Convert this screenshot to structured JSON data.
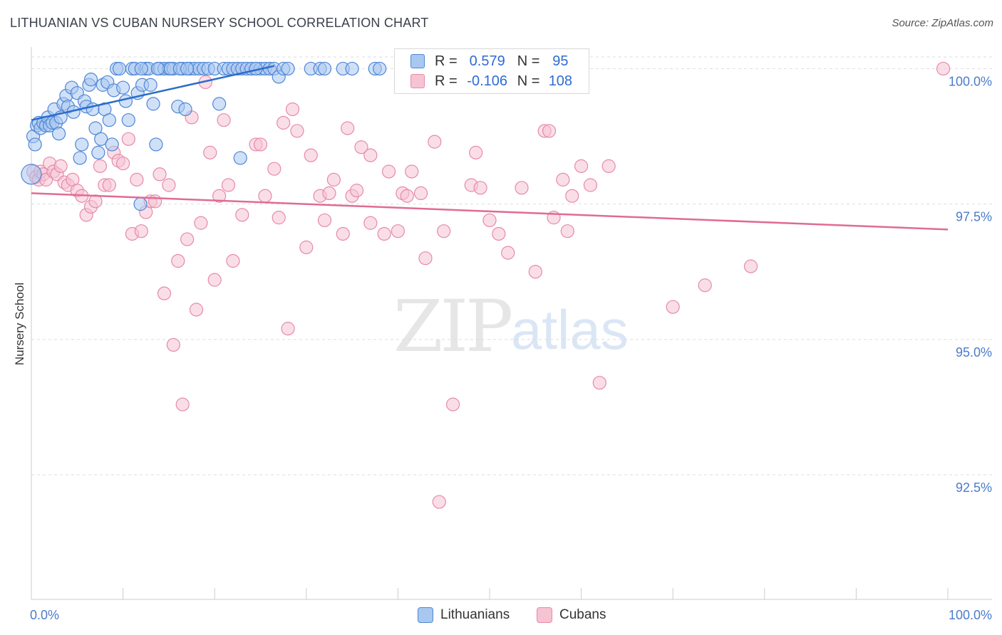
{
  "title": "LITHUANIAN VS CUBAN NURSERY SCHOOL CORRELATION CHART",
  "source": "Source: ZipAtlas.com",
  "watermark": {
    "zip": "ZIP",
    "atlas": "atlas"
  },
  "legend": {
    "r_label": "R =",
    "n_label": "N =",
    "lithuanians": {
      "r": "0.579",
      "n": "95"
    },
    "cubans": {
      "r": "-0.106",
      "n": "108"
    }
  },
  "colors": {
    "blue_fill": "#a9c8f0",
    "blue_stroke": "#4f86d6",
    "blue_line": "#2a6dcc",
    "pink_fill": "#f6c3d3",
    "pink_stroke": "#e68aa8",
    "pink_line": "#e06b95",
    "tick_text": "#4a7cc9"
  },
  "chart_data": {
    "type": "scatter",
    "title": "LITHUANIAN VS CUBAN NURSERY SCHOOL CORRELATION CHART",
    "xlabel": "",
    "ylabel": "Nursery School",
    "xlim": [
      0,
      100
    ],
    "ylim": [
      90.2,
      100.4
    ],
    "x_tick_labels": [
      "0.0%",
      "100.0%"
    ],
    "y_ticks": [
      92.5,
      95.0,
      97.5,
      100.0
    ],
    "y_tick_labels": [
      "92.5%",
      "95.0%",
      "97.5%",
      "100.0%"
    ],
    "legend_entries": [
      "Lithuanians",
      "Cubans"
    ],
    "series": [
      {
        "name": "Lithuanians",
        "trend": {
          "x": [
            0,
            26.5
          ],
          "y": [
            99.05,
            100.05
          ]
        },
        "points": [
          [
            0.2,
            98.75
          ],
          [
            0.4,
            98.6
          ],
          [
            0.6,
            98.95
          ],
          [
            0.8,
            99.0
          ],
          [
            1.0,
            98.9
          ],
          [
            1.3,
            99.0
          ],
          [
            1.6,
            98.95
          ],
          [
            1.8,
            99.1
          ],
          [
            2.0,
            98.95
          ],
          [
            2.3,
            99.0
          ],
          [
            2.5,
            99.25
          ],
          [
            2.7,
            99.0
          ],
          [
            3.0,
            98.8
          ],
          [
            3.2,
            99.1
          ],
          [
            3.5,
            99.35
          ],
          [
            3.8,
            99.5
          ],
          [
            4.0,
            99.3
          ],
          [
            4.4,
            99.65
          ],
          [
            4.6,
            99.2
          ],
          [
            5.0,
            99.55
          ],
          [
            5.3,
            98.35
          ],
          [
            5.5,
            98.6
          ],
          [
            5.8,
            99.4
          ],
          [
            6.0,
            99.3
          ],
          [
            6.3,
            99.7
          ],
          [
            6.5,
            99.8
          ],
          [
            6.7,
            99.25
          ],
          [
            7.0,
            98.9
          ],
          [
            7.3,
            98.45
          ],
          [
            7.6,
            98.7
          ],
          [
            7.8,
            99.7
          ],
          [
            8.0,
            99.25
          ],
          [
            8.3,
            99.75
          ],
          [
            8.5,
            99.05
          ],
          [
            8.8,
            98.6
          ],
          [
            9.0,
            99.6
          ],
          [
            9.3,
            100.0
          ],
          [
            9.6,
            100.0
          ],
          [
            10.0,
            99.65
          ],
          [
            10.3,
            99.4
          ],
          [
            10.6,
            99.05
          ],
          [
            11.0,
            100.0
          ],
          [
            11.3,
            100.0
          ],
          [
            11.6,
            99.55
          ],
          [
            11.9,
            97.5
          ],
          [
            12.1,
            99.7
          ],
          [
            12.5,
            100.0
          ],
          [
            12.8,
            100.0
          ],
          [
            13.0,
            99.7
          ],
          [
            13.3,
            99.35
          ],
          [
            13.6,
            98.6
          ],
          [
            14.0,
            100.0
          ],
          [
            14.5,
            100.0
          ],
          [
            15.0,
            100.0
          ],
          [
            15.5,
            100.0
          ],
          [
            16.0,
            99.3
          ],
          [
            16.5,
            100.0
          ],
          [
            16.8,
            99.25
          ],
          [
            17.3,
            100.0
          ],
          [
            17.8,
            100.0
          ],
          [
            18.3,
            100.0
          ],
          [
            18.8,
            100.0
          ],
          [
            19.3,
            100.0
          ],
          [
            20.0,
            100.0
          ],
          [
            20.5,
            99.35
          ],
          [
            21.0,
            100.0
          ],
          [
            21.5,
            100.0
          ],
          [
            22.0,
            100.0
          ],
          [
            22.5,
            100.0
          ],
          [
            23.0,
            100.0
          ],
          [
            23.5,
            100.0
          ],
          [
            24.0,
            100.0
          ],
          [
            24.5,
            100.0
          ],
          [
            25.0,
            100.0
          ],
          [
            25.5,
            100.0
          ],
          [
            26.0,
            100.0
          ],
          [
            26.5,
            100.0
          ],
          [
            27.0,
            99.85
          ],
          [
            27.5,
            100.0
          ],
          [
            28.0,
            100.0
          ],
          [
            30.5,
            100.0
          ],
          [
            31.5,
            100.0
          ],
          [
            32.0,
            100.0
          ],
          [
            34.0,
            100.0
          ],
          [
            35.0,
            100.0
          ],
          [
            37.5,
            100.0
          ],
          [
            38.0,
            100.0
          ],
          [
            22.8,
            98.35
          ],
          [
            24.5,
            100.0
          ],
          [
            12.0,
            100.0
          ],
          [
            13.8,
            100.0
          ],
          [
            15.2,
            100.0
          ],
          [
            16.2,
            100.0
          ],
          [
            17.0,
            100.0
          ],
          [
            0.0,
            98.05
          ]
        ]
      },
      {
        "name": "Cubans",
        "trend": {
          "x": [
            0,
            100
          ],
          "y": [
            97.7,
            97.03
          ]
        },
        "points": [
          [
            0.2,
            98.1
          ],
          [
            0.5,
            98.0
          ],
          [
            0.8,
            97.95
          ],
          [
            1.0,
            98.1
          ],
          [
            1.3,
            98.05
          ],
          [
            1.6,
            97.95
          ],
          [
            2.0,
            98.25
          ],
          [
            2.4,
            98.1
          ],
          [
            2.8,
            98.05
          ],
          [
            3.2,
            98.2
          ],
          [
            3.6,
            97.9
          ],
          [
            4.0,
            97.85
          ],
          [
            4.5,
            97.95
          ],
          [
            5.0,
            97.75
          ],
          [
            5.5,
            97.65
          ],
          [
            6.0,
            97.3
          ],
          [
            6.5,
            97.45
          ],
          [
            7.0,
            97.55
          ],
          [
            7.5,
            98.2
          ],
          [
            8.0,
            97.85
          ],
          [
            8.5,
            97.85
          ],
          [
            9.0,
            98.45
          ],
          [
            9.5,
            98.3
          ],
          [
            10.0,
            98.25
          ],
          [
            10.6,
            98.7
          ],
          [
            11.0,
            96.95
          ],
          [
            11.5,
            97.95
          ],
          [
            12.0,
            97.0
          ],
          [
            12.5,
            97.35
          ],
          [
            13.0,
            97.55
          ],
          [
            13.5,
            97.55
          ],
          [
            14.0,
            98.05
          ],
          [
            14.5,
            95.85
          ],
          [
            15.0,
            97.85
          ],
          [
            15.5,
            94.9
          ],
          [
            16.0,
            96.45
          ],
          [
            16.5,
            93.8
          ],
          [
            17.0,
            96.85
          ],
          [
            17.5,
            99.1
          ],
          [
            18.0,
            95.55
          ],
          [
            18.5,
            97.15
          ],
          [
            19.0,
            99.75
          ],
          [
            19.5,
            98.45
          ],
          [
            20.0,
            96.1
          ],
          [
            20.5,
            97.65
          ],
          [
            21.0,
            99.05
          ],
          [
            21.5,
            97.85
          ],
          [
            22.0,
            96.45
          ],
          [
            22.5,
            100.0
          ],
          [
            23.0,
            97.3
          ],
          [
            24.0,
            100.0
          ],
          [
            24.5,
            98.6
          ],
          [
            25.0,
            98.6
          ],
          [
            25.5,
            97.65
          ],
          [
            26.0,
            100.0
          ],
          [
            26.5,
            98.15
          ],
          [
            27.0,
            97.25
          ],
          [
            27.5,
            99.0
          ],
          [
            28.0,
            95.2
          ],
          [
            28.5,
            99.25
          ],
          [
            29.0,
            98.85
          ],
          [
            30.0,
            96.7
          ],
          [
            30.5,
            98.4
          ],
          [
            31.5,
            97.65
          ],
          [
            32.0,
            97.2
          ],
          [
            32.5,
            97.7
          ],
          [
            33.0,
            97.95
          ],
          [
            34.0,
            96.95
          ],
          [
            34.5,
            98.9
          ],
          [
            35.0,
            97.65
          ],
          [
            35.5,
            97.75
          ],
          [
            36.0,
            98.55
          ],
          [
            37.0,
            98.4
          ],
          [
            38.5,
            96.95
          ],
          [
            39.0,
            98.1
          ],
          [
            40.0,
            97.0
          ],
          [
            40.5,
            97.7
          ],
          [
            41.0,
            97.65
          ],
          [
            41.5,
            98.1
          ],
          [
            42.5,
            97.7
          ],
          [
            43.0,
            96.5
          ],
          [
            44.0,
            98.65
          ],
          [
            45.0,
            97.0
          ],
          [
            46.0,
            93.8
          ],
          [
            48.0,
            97.85
          ],
          [
            48.5,
            98.45
          ],
          [
            49.0,
            97.8
          ],
          [
            50.0,
            97.2
          ],
          [
            51.0,
            96.95
          ],
          [
            52.0,
            96.6
          ],
          [
            53.5,
            97.8
          ],
          [
            55.0,
            96.25
          ],
          [
            56.0,
            98.85
          ],
          [
            56.5,
            98.85
          ],
          [
            57.0,
            97.25
          ],
          [
            58.0,
            97.95
          ],
          [
            58.5,
            97.0
          ],
          [
            59.0,
            97.65
          ],
          [
            60.0,
            98.2
          ],
          [
            61.0,
            97.85
          ],
          [
            62.0,
            94.2
          ],
          [
            63.0,
            98.2
          ],
          [
            70.0,
            95.6
          ],
          [
            73.5,
            96.0
          ],
          [
            78.5,
            96.35
          ],
          [
            99.5,
            100.0
          ],
          [
            44.5,
            92.0
          ],
          [
            37.0,
            97.15
          ]
        ]
      }
    ]
  }
}
